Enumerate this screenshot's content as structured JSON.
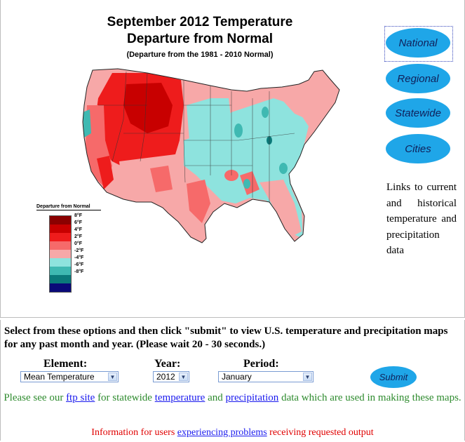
{
  "map": {
    "title_line1": "September 2012 Temperature",
    "title_line2": "Departure from Normal",
    "subtitle": "(Departure from the 1981 - 2010 Normal)"
  },
  "legend": {
    "title": "Departure from Normal",
    "items": [
      {
        "label": "8°F",
        "color": "#8b0000"
      },
      {
        "label": "6°F",
        "color": "#c80000"
      },
      {
        "label": "4°F",
        "color": "#ee1c1c"
      },
      {
        "label": "2°F",
        "color": "#f66a6a"
      },
      {
        "label": "0°F",
        "color": "#f7a8a8"
      },
      {
        "label": "-2°F",
        "color": "#8ee3de"
      },
      {
        "label": "-4°F",
        "color": "#3fb9b2"
      },
      {
        "label": "-6°F",
        "color": "#0b7a7a"
      },
      {
        "label": "-8°F",
        "color": "#0a0a78"
      }
    ]
  },
  "nav": {
    "national": "National",
    "regional": "Regional",
    "statewide": "Statewide",
    "cities": "Cities",
    "description": "Links to current and historical temperature and precipitation data"
  },
  "form": {
    "intro": "Select from these options and then click \"submit\" to view U.S. temperature and precipitation maps for any past month and year. (Please wait 20 - 30 seconds.)",
    "element_label": "Element:",
    "element_value": "Mean Temperature",
    "year_label": "Year:",
    "year_value": "2012",
    "period_label": "Period:",
    "period_value": "January",
    "submit_label": "Submit"
  },
  "notes": {
    "green_prefix": "Please see our ",
    "ftp_link": "ftp site",
    "green_mid1": " for statewide ",
    "temperature_link": "temperature",
    "green_mid2": " and ",
    "precipitation_link": "precipitation",
    "green_suffix": " data which are used in making these maps.",
    "red_prefix": "Information for users ",
    "problems_link": "experiencing problems",
    "red_suffix": " receiving requested output"
  },
  "colors": {
    "button": "#1fa6e8",
    "button_text": "#10205a",
    "green_text": "#2e8b2e",
    "red_text": "#e00000",
    "link": "#1a1aee"
  }
}
